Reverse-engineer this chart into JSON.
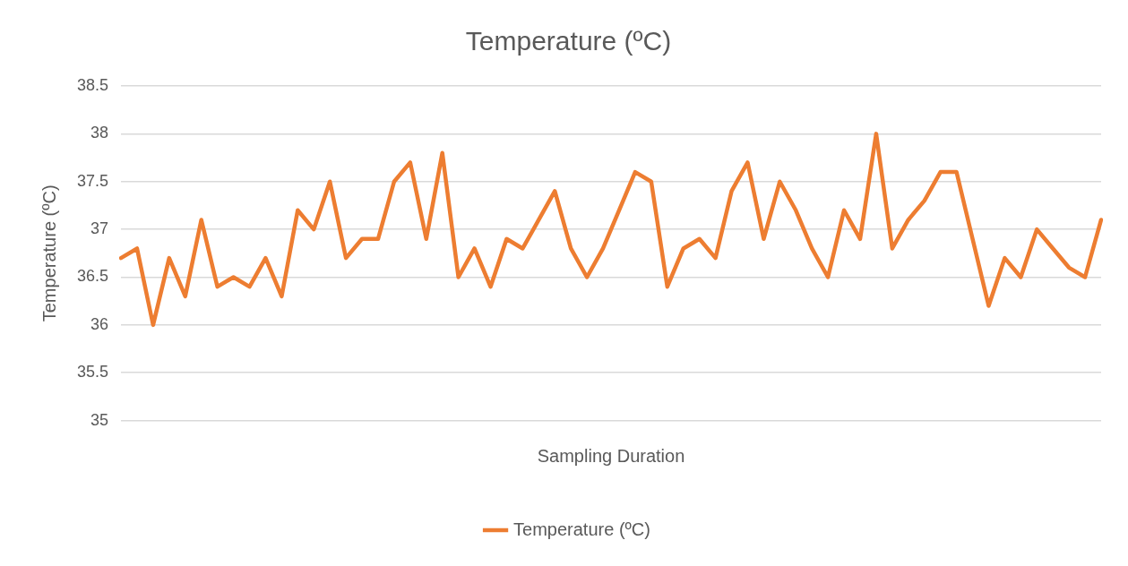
{
  "chart_data": {
    "type": "line",
    "title": "Temperature (ºC)",
    "xlabel": "Sampling Duration",
    "ylabel": "Temperature (ºC)",
    "categories": [
      null,
      null,
      null,
      null,
      null,
      null,
      null,
      null,
      null,
      null,
      null,
      null,
      null,
      null,
      null,
      null,
      null,
      null,
      null,
      null,
      null,
      null,
      null,
      null,
      null,
      null,
      null,
      null,
      null,
      null,
      null,
      null,
      null,
      null,
      null,
      null,
      null,
      null,
      null,
      null,
      null,
      null,
      null,
      null,
      null,
      null,
      null,
      null,
      null,
      null,
      null,
      null,
      null,
      null,
      null,
      null,
      null,
      null,
      null,
      null,
      null,
      null
    ],
    "series": [
      {
        "name": "Temperature (ºC)",
        "color": "#ed7d31",
        "values": [
          36.7,
          36.8,
          36.0,
          36.7,
          36.3,
          37.1,
          36.4,
          36.5,
          36.4,
          36.7,
          36.3,
          37.2,
          37.0,
          37.5,
          36.7,
          36.9,
          36.9,
          37.5,
          37.7,
          36.9,
          37.8,
          36.5,
          36.8,
          36.4,
          36.9,
          36.8,
          37.1,
          37.4,
          36.8,
          36.5,
          36.8,
          37.2,
          37.6,
          37.5,
          36.4,
          36.8,
          36.9,
          36.7,
          37.4,
          37.7,
          36.9,
          37.5,
          37.2,
          36.8,
          36.5,
          37.2,
          36.9,
          38.0,
          36.8,
          37.1,
          37.3,
          37.6,
          37.6,
          36.9,
          36.2,
          36.7,
          36.5,
          37.0,
          36.8,
          36.6,
          36.5,
          37.1
        ]
      }
    ],
    "ylim": [
      35,
      38.5
    ],
    "yticks": [
      35,
      35.5,
      36,
      36.5,
      37,
      37.5,
      38,
      38.5
    ],
    "grid": "y",
    "legend": "bottom",
    "marker": "none",
    "line_style": "solid"
  }
}
